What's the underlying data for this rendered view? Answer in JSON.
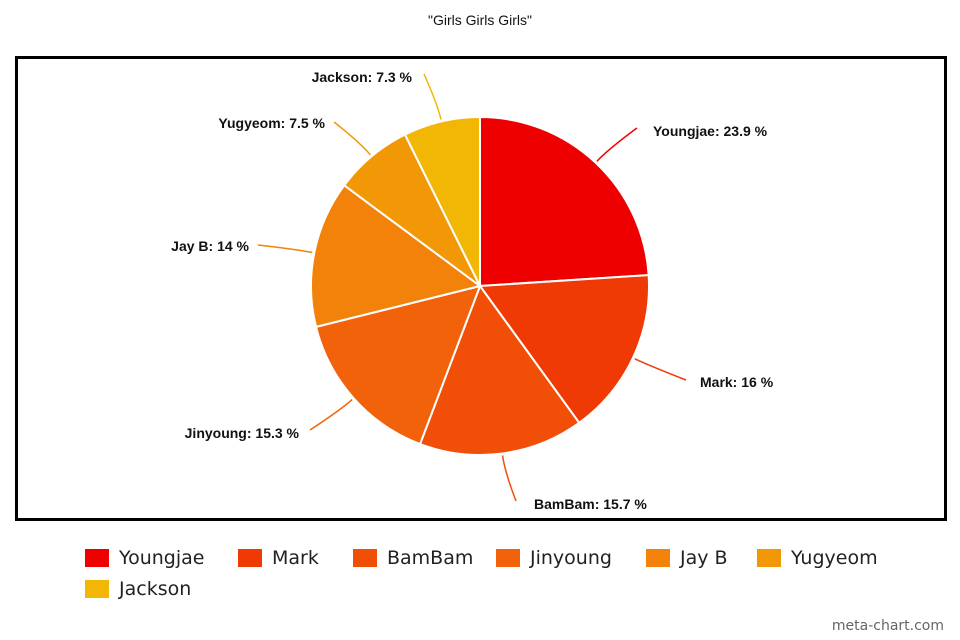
{
  "chart_data": {
    "type": "pie",
    "title": "\"Girls Girls Girls\"",
    "slices": [
      {
        "label": "Youngjae",
        "value": 23.9,
        "display": "Youngjae: 23.9 %",
        "color": "#EE0000"
      },
      {
        "label": "Mark",
        "value": 16,
        "display": "Mark: 16 %",
        "color": "#F03A05"
      },
      {
        "label": "BamBam",
        "value": 15.7,
        "display": "BamBam: 15.7 %",
        "color": "#F14E08"
      },
      {
        "label": "Jinyoung",
        "value": 15.3,
        "display": "Jinyoung: 15.3 %",
        "color": "#F1620A"
      },
      {
        "label": "Jay B",
        "value": 14,
        "display": "Jay B: 14 %",
        "color": "#F28209"
      },
      {
        "label": "Yugyeom",
        "value": 7.5,
        "display": "Yugyeom: 7.5 %",
        "color": "#F29807"
      },
      {
        "label": "Jackson",
        "value": 7.3,
        "display": "Jackson: 7.3 %",
        "color": "#F2B705"
      }
    ],
    "legend_position": "bottom"
  },
  "watermark": "meta-chart.com"
}
